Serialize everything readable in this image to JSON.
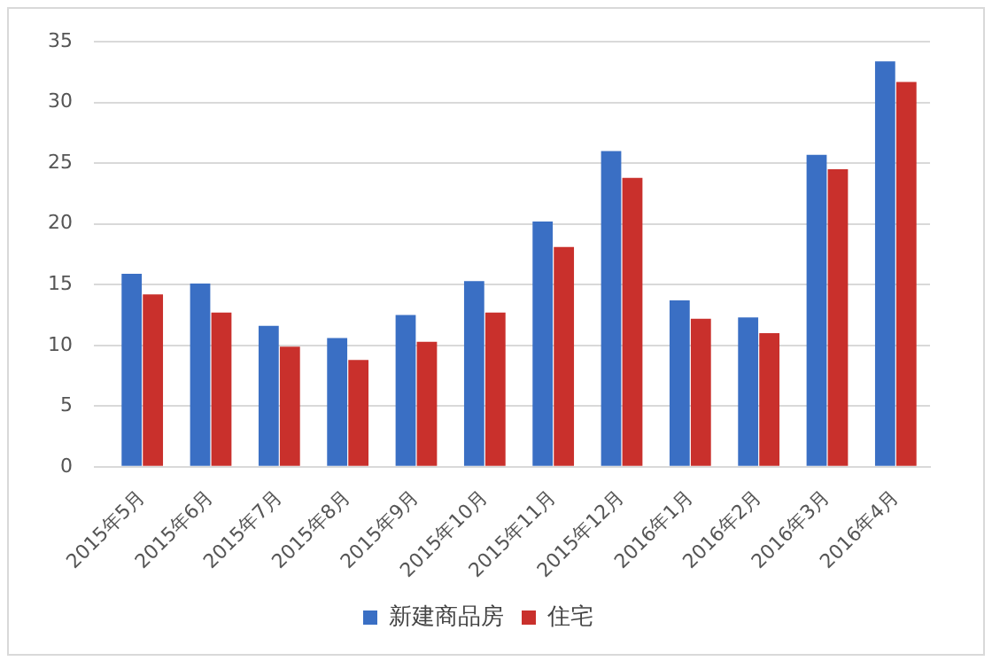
{
  "chart_data": {
    "type": "bar",
    "categories": [
      "2015年5月",
      "2015年6月",
      "2015年7月",
      "2015年8月",
      "2015年9月",
      "2015年10月",
      "2015年11月",
      "2015年12月",
      "2016年1月",
      "2016年2月",
      "2016年3月",
      "2016年4月"
    ],
    "series": [
      {
        "name": "新建商品房",
        "color": "#3a6fc4",
        "values": [
          15.9,
          15.1,
          11.6,
          10.6,
          12.5,
          15.3,
          20.2,
          26.0,
          13.7,
          12.3,
          25.7,
          33.4
        ]
      },
      {
        "name": "住宅",
        "color": "#c9302c",
        "values": [
          14.2,
          12.7,
          9.9,
          8.8,
          10.3,
          12.7,
          18.1,
          23.8,
          12.2,
          11.0,
          24.5,
          31.7
        ]
      }
    ],
    "ylim": [
      0,
      35
    ],
    "yticks": [
      0,
      5,
      10,
      15,
      20,
      25,
      30,
      35
    ],
    "grid": "y",
    "legend": "bottom"
  }
}
